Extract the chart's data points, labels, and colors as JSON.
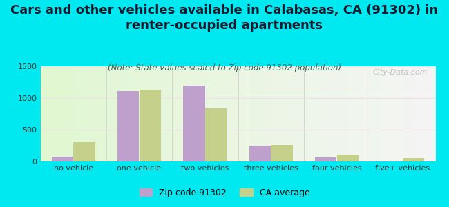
{
  "title": "Cars and other vehicles available in Calabasas, CA (91302) in\nrenter-occupied apartments",
  "subtitle": "(Note: State values scaled to Zip code 91302 population)",
  "categories": [
    "no vehicle",
    "one vehicle",
    "two vehicles",
    "three vehicles",
    "four vehicles",
    "five+ vehicles"
  ],
  "zip_values": [
    75,
    1110,
    1200,
    255,
    70,
    0
  ],
  "ca_values": [
    300,
    1130,
    840,
    265,
    105,
    50
  ],
  "zip_color": "#bf9fcc",
  "ca_color": "#c5d08a",
  "background_outer": "#00e8f0",
  "ylim": [
    0,
    1500
  ],
  "yticks": [
    0,
    500,
    1000,
    1500
  ],
  "zip_label": "Zip code 91302",
  "ca_label": "CA average",
  "watermark": "City-Data.com",
  "title_fontsize": 13,
  "subtitle_fontsize": 8.5,
  "axis_fontsize": 8,
  "legend_fontsize": 9,
  "title_color": "#1a1a2e",
  "subtitle_color": "#336655"
}
